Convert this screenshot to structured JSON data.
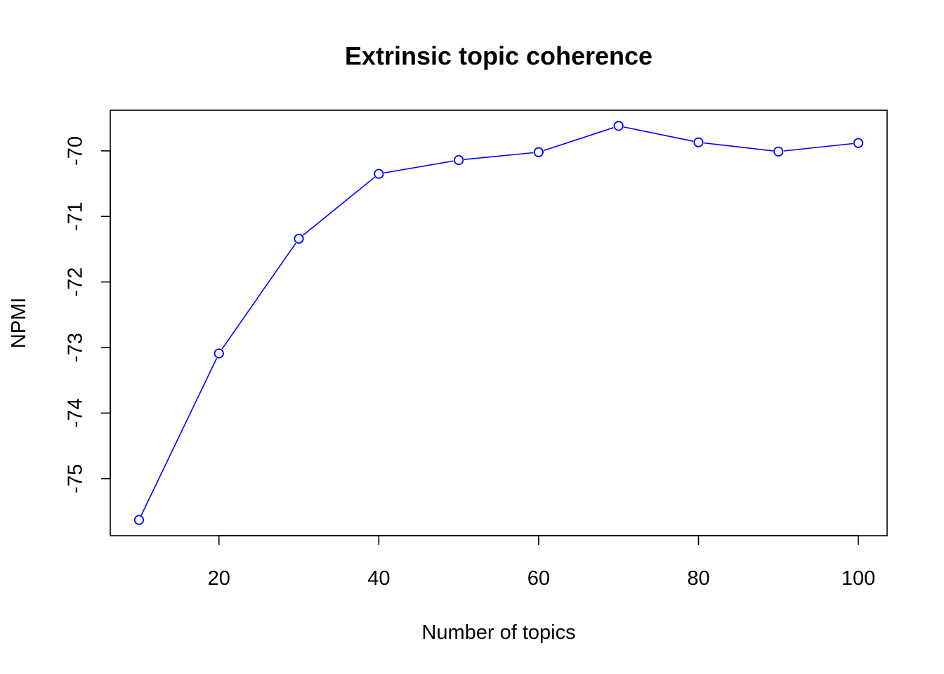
{
  "chart_data": {
    "type": "line",
    "title": "Extrinsic topic coherence",
    "xlabel": "Number of topics",
    "ylabel": "NPMI",
    "x": [
      10,
      20,
      30,
      40,
      50,
      60,
      70,
      80,
      90,
      100
    ],
    "series": [
      {
        "values": [
          -75.63,
          -73.09,
          -71.34,
          -70.35,
          -70.14,
          -70.02,
          -69.62,
          -69.87,
          -70.01,
          -69.88
        ],
        "color": "#0000ff",
        "marker": "open-circle"
      }
    ],
    "xticks": [
      20,
      40,
      60,
      80,
      100
    ],
    "xtick_labels": [
      "20",
      "40",
      "60",
      "80",
      "100"
    ],
    "yticks": [
      -75,
      -74,
      -73,
      -72,
      -71,
      -70
    ],
    "ytick_labels": [
      "-75",
      "-74",
      "-73",
      "-72",
      "-71",
      "-70"
    ],
    "xlim": [
      6.4,
      103.6
    ],
    "ylim": [
      -75.87,
      -69.38
    ],
    "grid": false,
    "legend": false
  }
}
